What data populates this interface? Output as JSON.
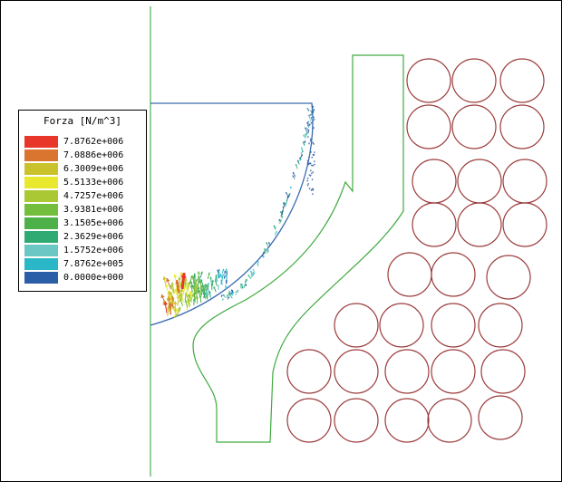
{
  "legend": {
    "title": "Forza [N/m^3]",
    "entries": [
      {
        "label": "7.8762e+006",
        "color": "#e8372a"
      },
      {
        "label": "7.0886e+006",
        "color": "#d9752f"
      },
      {
        "label": "6.3009e+006",
        "color": "#c9c22b"
      },
      {
        "label": "5.5133e+006",
        "color": "#e8e82e"
      },
      {
        "label": "4.7257e+006",
        "color": "#a9c834"
      },
      {
        "label": "3.9381e+006",
        "color": "#74be3d"
      },
      {
        "label": "3.1505e+006",
        "color": "#4eb048"
      },
      {
        "label": "2.3629e+006",
        "color": "#2eaa72"
      },
      {
        "label": "1.5752e+006",
        "color": "#6ac7c3"
      },
      {
        "label": "7.8762e+005",
        "color": "#2ab8c8"
      },
      {
        "label": "0.0000e+000",
        "color": "#2a5fa8"
      }
    ]
  },
  "colors": {
    "axis_line": "#2f9e2f",
    "electrode_outline": "#3faa3f",
    "conductor_circles": "#9b3b3b",
    "domain_boundary": "#3a6bb0"
  }
}
